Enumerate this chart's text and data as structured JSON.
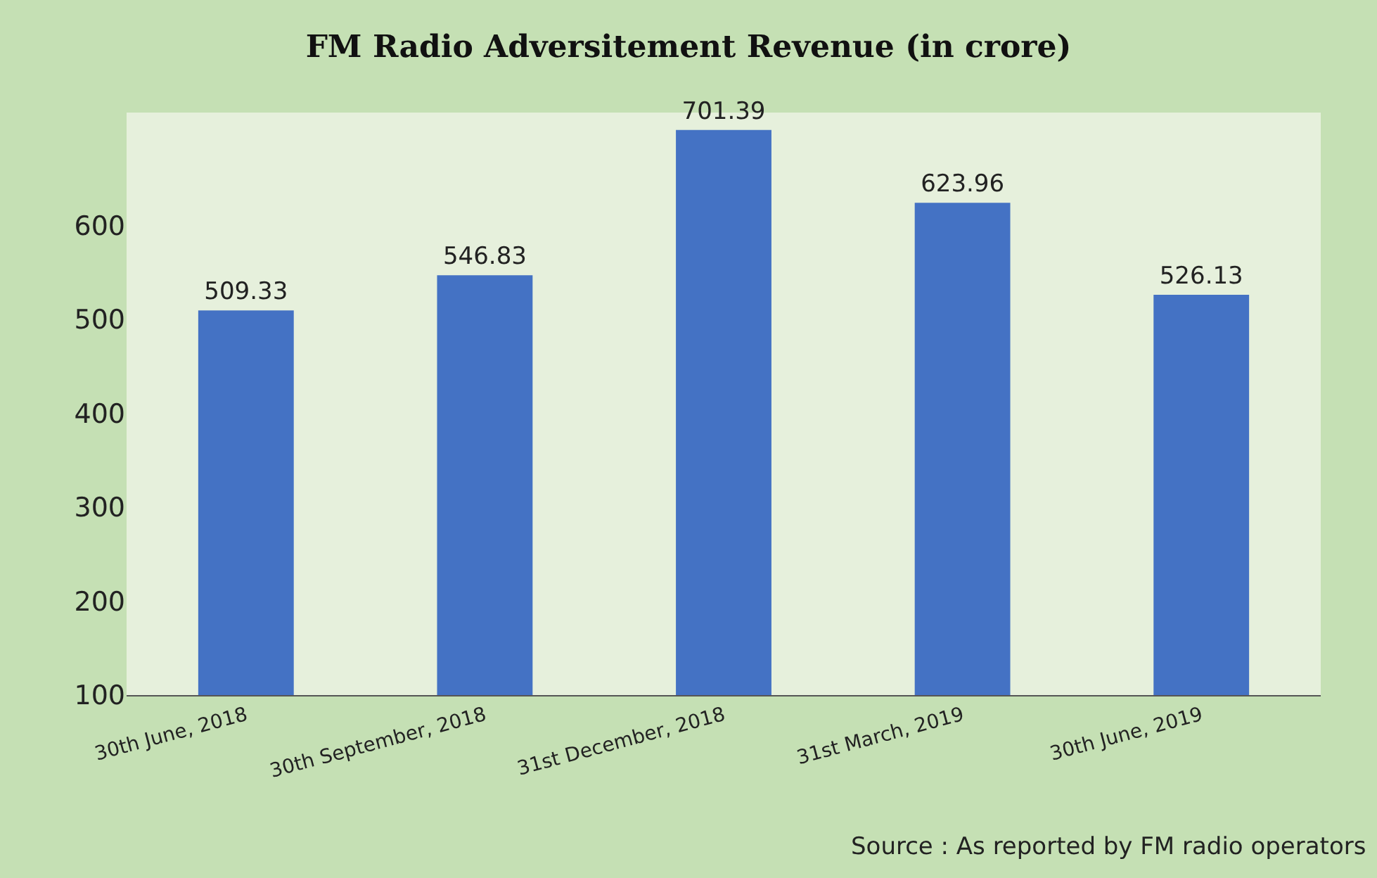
{
  "chart_data": {
    "type": "bar",
    "title": "FM Radio Adversitement Revenue (in crore)",
    "categories": [
      "30th June, 2018",
      "30th September, 2018",
      "31st December, 2018",
      "31st March, 2019",
      "30th June, 2019"
    ],
    "values": [
      509.33,
      546.83,
      701.39,
      623.96,
      526.13
    ],
    "color": "#4472c4",
    "ylim": [
      100,
      720
    ],
    "yticks": [
      100,
      200,
      300,
      400,
      500,
      600
    ],
    "data_labels": true,
    "grid": false,
    "legend": false,
    "annotations": [
      "Source : As reported by FM radio operators"
    ]
  }
}
